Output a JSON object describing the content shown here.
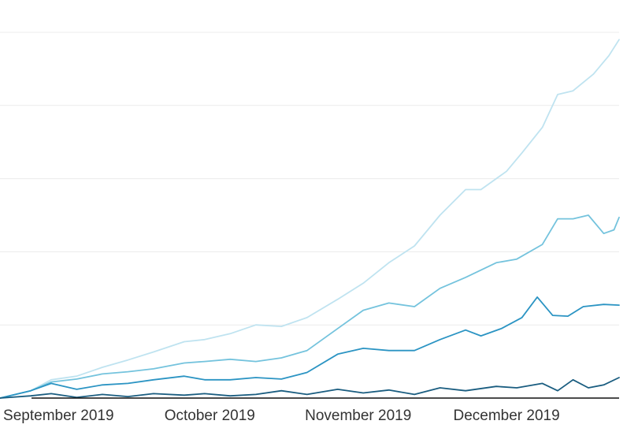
{
  "chart_data": {
    "type": "line",
    "title": "",
    "xlabel": "",
    "ylabel": "",
    "x_start": "2019-08-26",
    "x_end": "2019-12-25",
    "ylim": [
      0,
      500
    ],
    "grid": true,
    "legend": "none",
    "x_ticks": [
      {
        "label": "September 2019",
        "date": "2019-09-06"
      },
      {
        "label": "October 2019",
        "date": "2019-10-06"
      },
      {
        "label": "November 2019",
        "date": "2019-11-04"
      },
      {
        "label": "December 2019",
        "date": "2019-12-03"
      }
    ],
    "y_gridlines": [
      100,
      200,
      300,
      400,
      500
    ],
    "colors": {
      "grid": "#ececec",
      "axis": "#111111",
      "text": "#333333"
    },
    "series": [
      {
        "color": "#bfe3f0",
        "points": [
          [
            "2019-08-26",
            0
          ],
          [
            "2019-09-01",
            10
          ],
          [
            "2019-09-05",
            25
          ],
          [
            "2019-09-10",
            30
          ],
          [
            "2019-09-15",
            42
          ],
          [
            "2019-09-20",
            52
          ],
          [
            "2019-09-25",
            63
          ],
          [
            "2019-10-01",
            77
          ],
          [
            "2019-10-05",
            80
          ],
          [
            "2019-10-10",
            88
          ],
          [
            "2019-10-15",
            100
          ],
          [
            "2019-10-20",
            98
          ],
          [
            "2019-10-25",
            110
          ],
          [
            "2019-10-31",
            135
          ],
          [
            "2019-11-05",
            157
          ],
          [
            "2019-11-10",
            185
          ],
          [
            "2019-11-15",
            208
          ],
          [
            "2019-11-20",
            250
          ],
          [
            "2019-11-25",
            285
          ],
          [
            "2019-11-28",
            285
          ],
          [
            "2019-12-03",
            310
          ],
          [
            "2019-12-06",
            335
          ],
          [
            "2019-12-10",
            370
          ],
          [
            "2019-12-13",
            415
          ],
          [
            "2019-12-16",
            420
          ],
          [
            "2019-12-20",
            443
          ],
          [
            "2019-12-23",
            468
          ],
          [
            "2019-12-25",
            490
          ]
        ]
      },
      {
        "color": "#74c3dd",
        "points": [
          [
            "2019-08-26",
            0
          ],
          [
            "2019-09-01",
            10
          ],
          [
            "2019-09-05",
            22
          ],
          [
            "2019-09-10",
            26
          ],
          [
            "2019-09-15",
            33
          ],
          [
            "2019-09-20",
            36
          ],
          [
            "2019-09-25",
            40
          ],
          [
            "2019-10-01",
            48
          ],
          [
            "2019-10-05",
            50
          ],
          [
            "2019-10-10",
            53
          ],
          [
            "2019-10-15",
            50
          ],
          [
            "2019-10-20",
            55
          ],
          [
            "2019-10-25",
            65
          ],
          [
            "2019-10-31",
            95
          ],
          [
            "2019-11-05",
            120
          ],
          [
            "2019-11-10",
            130
          ],
          [
            "2019-11-15",
            125
          ],
          [
            "2019-11-20",
            150
          ],
          [
            "2019-11-25",
            165
          ],
          [
            "2019-12-01",
            185
          ],
          [
            "2019-12-05",
            190
          ],
          [
            "2019-12-10",
            210
          ],
          [
            "2019-12-13",
            245
          ],
          [
            "2019-12-16",
            245
          ],
          [
            "2019-12-19",
            250
          ],
          [
            "2019-12-22",
            225
          ],
          [
            "2019-12-24",
            230
          ],
          [
            "2019-12-25",
            247
          ]
        ]
      },
      {
        "color": "#2b94c3",
        "points": [
          [
            "2019-08-26",
            0
          ],
          [
            "2019-09-01",
            10
          ],
          [
            "2019-09-05",
            20
          ],
          [
            "2019-09-10",
            12
          ],
          [
            "2019-09-15",
            18
          ],
          [
            "2019-09-20",
            20
          ],
          [
            "2019-09-25",
            25
          ],
          [
            "2019-10-01",
            30
          ],
          [
            "2019-10-05",
            25
          ],
          [
            "2019-10-10",
            25
          ],
          [
            "2019-10-15",
            28
          ],
          [
            "2019-10-20",
            26
          ],
          [
            "2019-10-25",
            35
          ],
          [
            "2019-10-31",
            60
          ],
          [
            "2019-11-05",
            68
          ],
          [
            "2019-11-10",
            65
          ],
          [
            "2019-11-15",
            65
          ],
          [
            "2019-11-20",
            80
          ],
          [
            "2019-11-25",
            93
          ],
          [
            "2019-11-28",
            85
          ],
          [
            "2019-12-02",
            95
          ],
          [
            "2019-12-06",
            110
          ],
          [
            "2019-12-09",
            138
          ],
          [
            "2019-12-12",
            113
          ],
          [
            "2019-12-15",
            112
          ],
          [
            "2019-12-18",
            125
          ],
          [
            "2019-12-22",
            128
          ],
          [
            "2019-12-25",
            127
          ]
        ]
      },
      {
        "color": "#1a5d80",
        "points": [
          [
            "2019-08-26",
            0
          ],
          [
            "2019-09-01",
            3
          ],
          [
            "2019-09-05",
            6
          ],
          [
            "2019-09-10",
            1
          ],
          [
            "2019-09-15",
            5
          ],
          [
            "2019-09-20",
            2
          ],
          [
            "2019-09-25",
            6
          ],
          [
            "2019-10-01",
            4
          ],
          [
            "2019-10-05",
            6
          ],
          [
            "2019-10-10",
            3
          ],
          [
            "2019-10-15",
            5
          ],
          [
            "2019-10-20",
            10
          ],
          [
            "2019-10-25",
            5
          ],
          [
            "2019-10-31",
            12
          ],
          [
            "2019-11-05",
            7
          ],
          [
            "2019-11-10",
            11
          ],
          [
            "2019-11-15",
            5
          ],
          [
            "2019-11-20",
            14
          ],
          [
            "2019-11-25",
            10
          ],
          [
            "2019-12-01",
            16
          ],
          [
            "2019-12-05",
            14
          ],
          [
            "2019-12-10",
            20
          ],
          [
            "2019-12-13",
            10
          ],
          [
            "2019-12-16",
            25
          ],
          [
            "2019-12-19",
            14
          ],
          [
            "2019-12-22",
            18
          ],
          [
            "2019-12-25",
            28
          ]
        ]
      }
    ]
  }
}
